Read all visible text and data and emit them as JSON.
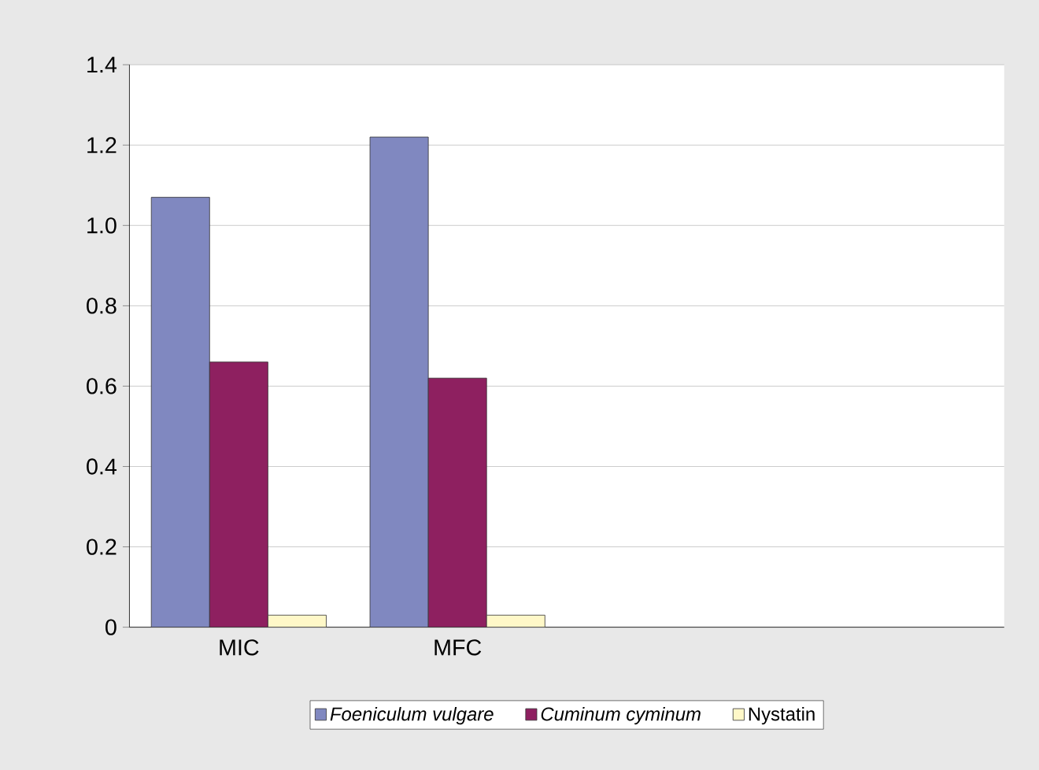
{
  "chart_data": {
    "type": "bar",
    "categories": [
      "MIC",
      "MFC",
      null,
      null
    ],
    "series": [
      {
        "name": "*Foeniculum vulgare*",
        "color": "#8088c0",
        "values": [
          1.07,
          1.22,
          null,
          null
        ]
      },
      {
        "name": "*Cuminum cyminum*",
        "color": "#8e2060",
        "values": [
          0.66,
          0.62,
          null,
          null
        ]
      },
      {
        "name": "Nystatin",
        "color": "#fff8c8",
        "values": [
          0.03,
          0.03,
          null,
          null
        ]
      }
    ],
    "ylim": [
      0,
      1.4
    ],
    "yticks": [
      0,
      {
        "value": 0.2,
        "label": "0.2"
      },
      {
        "value": 0.4,
        "label": "0.4"
      },
      {
        "value": 0.6,
        "label": "0.6"
      },
      {
        "value": 0.8,
        "label": "0.8"
      },
      {
        "value": 1.0,
        "label": "1.0"
      },
      {
        "value": 1.2,
        "label": "1.2"
      },
      {
        "value": 1.4,
        "label": "1.4"
      }
    ],
    "grid": "y",
    "legend": "bottom"
  }
}
